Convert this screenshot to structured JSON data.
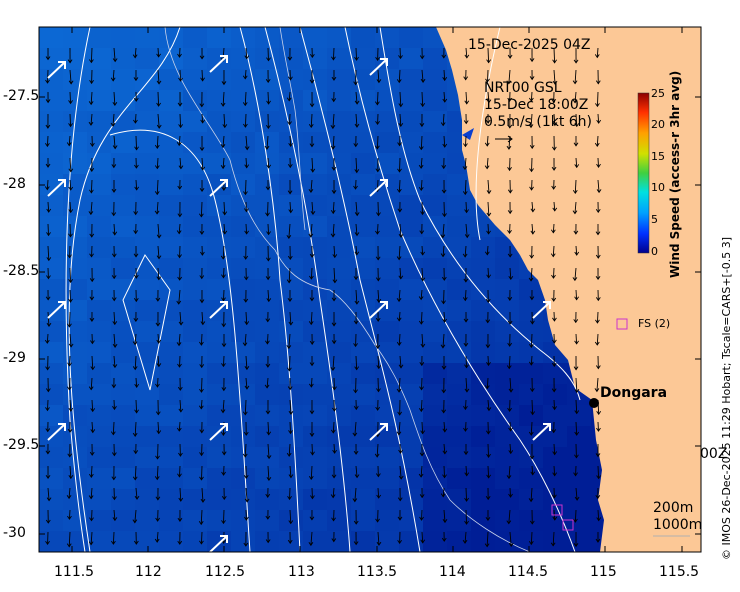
{
  "plot": {
    "date_label": "15-Dec-2025 04Z",
    "model_line1": "NRT00 GSL",
    "model_line2": "15-Dec 18:00Z",
    "model_line3": "0.5m/s (1kt 6h)",
    "clipped_label": "00Z",
    "station_name": "Dongara",
    "fs_label": "FS (2)",
    "contour_200": "200m",
    "contour_1000": "1000m",
    "credit": "© IMOS 26-Dec-2025 11:29 Hobart; Tscale=CARS+[-0.5 3]"
  },
  "axes": {
    "x_ticks": [
      "111.5",
      "112",
      "112.5",
      "113",
      "113.5",
      "114",
      "114.5",
      "115",
      "115.5"
    ],
    "y_ticks": [
      "-27.5",
      "-28",
      "-28.5",
      "-29",
      "-29.5",
      "-30"
    ]
  },
  "colorbar": {
    "title": "Wind Speed (access-r 3hr avg)",
    "ticks": [
      "25",
      "20",
      "15",
      "10",
      "5",
      "0"
    ],
    "min": 0,
    "max": 25
  },
  "colors": {
    "land": "#fcc896",
    "marker": "#cc33cc"
  },
  "icons": {
    "vector": "arrow-icon",
    "station": "station-dot-icon",
    "fs_marker": "square-marker-icon"
  }
}
